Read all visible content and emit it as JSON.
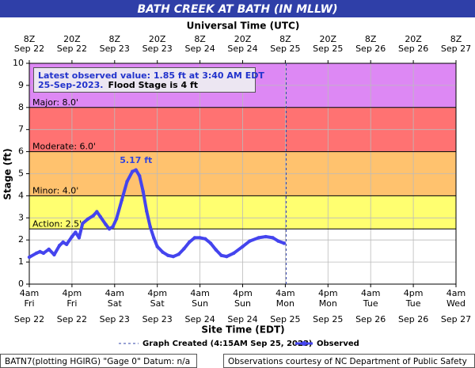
{
  "chart_data": {
    "type": "line",
    "title": "BATH CREEK AT BATH (IN MLLW)",
    "top_axis_label": "Universal Time (UTC)",
    "xlabel": "Site Time (EDT)",
    "ylabel": "Stage (ft)",
    "xlim": [
      "09-22T04:00-04:00",
      "09-27T04:00-04:00"
    ],
    "ylim": [
      0,
      10
    ],
    "yticks": [
      0,
      1,
      2,
      3,
      4,
      5,
      6,
      7,
      8,
      9,
      10
    ],
    "xticks": [
      {
        "value": "09-22T04:00-04:00",
        "label": [
          "4am",
          "Fri",
          "Sep 22"
        ]
      },
      {
        "value": "09-22T16:00-04:00",
        "label": [
          "4pm",
          "Fri",
          "Sep 22"
        ]
      },
      {
        "value": "09-23T04:00-04:00",
        "label": [
          "4am",
          "Sat",
          "Sep 23"
        ]
      },
      {
        "value": "09-23T16:00-04:00",
        "label": [
          "4pm",
          "Sat",
          "Sep 23"
        ]
      },
      {
        "value": "09-24T04:00-04:00",
        "label": [
          "4am",
          "Sun",
          "Sep 24"
        ]
      },
      {
        "value": "09-24T16:00-04:00",
        "label": [
          "4pm",
          "Sun",
          "Sep 24"
        ]
      },
      {
        "value": "09-25T04:00-04:00",
        "label": [
          "4am",
          "Mon",
          "Sep 25"
        ]
      },
      {
        "value": "09-25T16:00-04:00",
        "label": [
          "4pm",
          "Mon",
          "Sep 25"
        ]
      },
      {
        "value": "09-26T04:00-04:00",
        "label": [
          "4am",
          "Tue",
          "Sep 26"
        ]
      },
      {
        "value": "09-26T16:00-04:00",
        "label": [
          "4pm",
          "Tue",
          "Sep 26"
        ]
      },
      {
        "value": "09-27T04:00-04:00",
        "label": [
          "4am",
          "Wed",
          "Sep 27"
        ]
      }
    ],
    "top_xticks": [
      {
        "value": "09-22T08:00Z",
        "label": [
          "8Z",
          "Sep 22"
        ]
      },
      {
        "value": "09-22T20:00Z",
        "label": [
          "20Z",
          "Sep 22"
        ]
      },
      {
        "value": "09-23T08:00Z",
        "label": [
          "8Z",
          "Sep 23"
        ]
      },
      {
        "value": "09-23T20:00Z",
        "label": [
          "20Z",
          "Sep 23"
        ]
      },
      {
        "value": "09-24T08:00Z",
        "label": [
          "8Z",
          "Sep 24"
        ]
      },
      {
        "value": "09-24T20:00Z",
        "label": [
          "20Z",
          "Sep 24"
        ]
      },
      {
        "value": "09-25T08:00Z",
        "label": [
          "8Z",
          "Sep 25"
        ]
      },
      {
        "value": "09-25T20:00Z",
        "label": [
          "20Z",
          "Sep 25"
        ]
      },
      {
        "value": "09-26T08:00Z",
        "label": [
          "8Z",
          "Sep 26"
        ]
      },
      {
        "value": "09-26T20:00Z",
        "label": [
          "20Z",
          "Sep 26"
        ]
      },
      {
        "value": "09-27T08:00Z",
        "label": [
          "8Z",
          "Sep 27"
        ]
      }
    ],
    "grid": true,
    "flood_stages": [
      {
        "label": "Major: 8.0'",
        "value": 8,
        "color": "#dd88f4"
      },
      {
        "label": "Moderate: 6.0'",
        "value": 6,
        "color": "#ff7272"
      },
      {
        "label": "Minor: 4.0'",
        "value": 4,
        "color": "#ffc26e"
      },
      {
        "label": "Action: 2.5'",
        "value": 2.5,
        "color": "#ffff70"
      }
    ],
    "graph_created": {
      "x": "09-25T04:15-04:00",
      "label": "Graph Created (4:15AM Sep 25, 2023)"
    },
    "info_box": {
      "lines": [
        "Latest observed value: 1.85 ft at 3:40 AM EDT",
        "25-Sep-2023."
      ],
      "note": "Flood Stage is 4 ft"
    },
    "peak_label": {
      "text": "5.17 ft",
      "x": "09-23T10:00-04:00",
      "value": 5.17
    },
    "x": [
      "09-22T04:00-04:00",
      "09-22T06:00-04:00",
      "09-22T07:00-04:00",
      "09-22T08:00-04:00",
      "09-22T09:30-04:00",
      "09-22T11:00-04:00",
      "09-22T12:30-04:00",
      "09-22T13:30-04:00",
      "09-22T14:30-04:00",
      "09-22T16:00-04:00",
      "09-22T17:00-04:00",
      "09-22T18:00-04:00",
      "09-22T19:00-04:00",
      "09-22T20:30-04:00",
      "09-22T22:00-04:00",
      "09-22T23:00-04:00",
      "09-23T00:00-04:00",
      "09-23T01:30-04:00",
      "09-23T02:30-04:00",
      "09-23T03:30-04:00",
      "09-23T04:30-04:00",
      "09-23T06:00-04:00",
      "09-23T07:30-04:00",
      "09-23T09:00-04:00",
      "09-23T10:00-04:00",
      "09-23T11:00-04:00",
      "09-23T12:00-04:00",
      "09-23T13:00-04:00",
      "09-23T14:00-04:00",
      "09-23T15:00-04:00",
      "09-23T16:00-04:00",
      "09-23T17:30-04:00",
      "09-23T19:00-04:00",
      "09-23T20:30-04:00",
      "09-23T22:00-04:00",
      "09-23T23:30-04:00",
      "09-24T01:00-04:00",
      "09-24T02:30-04:00",
      "09-24T04:00-04:00",
      "09-24T05:30-04:00",
      "09-24T07:00-04:00",
      "09-24T08:30-04:00",
      "09-24T10:00-04:00",
      "09-24T11:30-04:00",
      "09-24T13:30-04:00",
      "09-24T16:00-04:00",
      "09-24T18:00-04:00",
      "09-24T20:30-04:00",
      "09-24T22:30-04:00",
      "09-25T00:30-04:00",
      "09-25T02:00-04:00",
      "09-25T03:40-04:00"
    ],
    "series": [
      {
        "name": "Observed",
        "color": "#4444ee",
        "values": [
          1.22,
          1.4,
          1.47,
          1.4,
          1.58,
          1.33,
          1.75,
          1.9,
          1.8,
          2.15,
          2.35,
          2.1,
          2.75,
          2.95,
          3.1,
          3.28,
          3.05,
          2.7,
          2.5,
          2.6,
          2.95,
          3.8,
          4.65,
          5.1,
          5.17,
          4.9,
          4.2,
          3.3,
          2.6,
          2.1,
          1.7,
          1.45,
          1.3,
          1.25,
          1.35,
          1.6,
          1.9,
          2.1,
          2.1,
          2.05,
          1.85,
          1.55,
          1.3,
          1.25,
          1.4,
          1.7,
          1.95,
          2.1,
          2.15,
          2.1,
          1.95,
          1.85
        ]
      }
    ],
    "footer_left": "BATN7(plotting HGIRG) \"Gage 0\" Datum: n/a",
    "footer_right": "Observations courtesy of NC Department of Public Safety"
  }
}
